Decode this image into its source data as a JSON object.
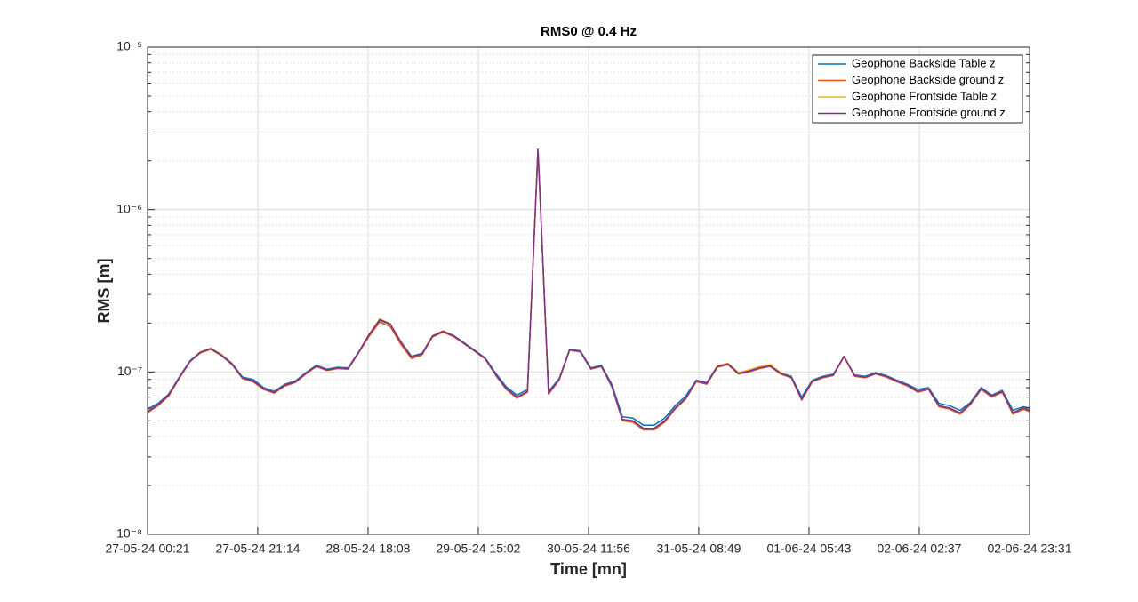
{
  "chart_data": {
    "type": "line",
    "title": "RMS0 @ 0.4 Hz",
    "x_label": "Time [mn]",
    "y_label": "RMS [m]",
    "yscale": "log",
    "grid": true,
    "minor_grid": true,
    "legend_position": "top-right",
    "xlim": [
      "27-05-24 00:21",
      "02-06-24 23:31"
    ],
    "xticks": [
      "27-05-24 00:21",
      "27-05-24 21:14",
      "28-05-24 18:08",
      "29-05-24 15:02",
      "30-05-24 11:56",
      "31-05-24 08:49",
      "01-06-24 05:43",
      "02-06-24 02:37",
      "02-06-24 23:31"
    ],
    "ylim": [
      1e-08,
      1e-05
    ],
    "yticks": [
      {
        "value": 1e-08,
        "label": "10⁻⁸"
      },
      {
        "value": 1e-07,
        "label": "10⁻⁷"
      },
      {
        "value": 1e-06,
        "label": "10⁻⁶"
      },
      {
        "value": 1e-05,
        "label": "10⁻⁵"
      }
    ],
    "x": [
      "27-05-24 00:21",
      "27-05-24 02:21",
      "27-05-24 04:21",
      "27-05-24 06:21",
      "27-05-24 08:21",
      "27-05-24 10:21",
      "27-05-24 12:21",
      "27-05-24 14:21",
      "27-05-24 16:21",
      "27-05-24 18:21",
      "27-05-24 20:21",
      "27-05-24 22:21",
      "28-05-24 00:21",
      "28-05-24 02:21",
      "28-05-24 04:21",
      "28-05-24 06:21",
      "28-05-24 08:21",
      "28-05-24 10:21",
      "28-05-24 12:21",
      "28-05-24 14:21",
      "28-05-24 16:21",
      "28-05-24 18:21",
      "28-05-24 20:21",
      "28-05-24 22:21",
      "29-05-24 00:21",
      "29-05-24 02:21",
      "29-05-24 04:21",
      "29-05-24 06:21",
      "29-05-24 08:21",
      "29-05-24 10:21",
      "29-05-24 12:21",
      "29-05-24 14:21",
      "29-05-24 16:21",
      "29-05-24 18:21",
      "29-05-24 20:21",
      "29-05-24 22:21",
      "30-05-24 00:21",
      "30-05-24 02:21",
      "30-05-24 04:21",
      "30-05-24 06:21",
      "30-05-24 08:21",
      "30-05-24 10:21",
      "30-05-24 12:21",
      "30-05-24 14:21",
      "30-05-24 16:21",
      "30-05-24 18:21",
      "30-05-24 20:21",
      "30-05-24 22:21",
      "31-05-24 00:21",
      "31-05-24 02:21",
      "31-05-24 04:21",
      "31-05-24 06:21",
      "31-05-24 08:21",
      "31-05-24 10:21",
      "31-05-24 12:21",
      "31-05-24 14:21",
      "31-05-24 16:21",
      "31-05-24 18:21",
      "31-05-24 20:21",
      "31-05-24 22:21",
      "01-06-24 00:21",
      "01-06-24 02:21",
      "01-06-24 04:21",
      "01-06-24 06:21",
      "01-06-24 08:21",
      "01-06-24 10:21",
      "01-06-24 12:21",
      "01-06-24 14:21",
      "01-06-24 16:21",
      "01-06-24 18:21",
      "01-06-24 20:21",
      "01-06-24 22:21",
      "02-06-24 00:21",
      "02-06-24 02:21",
      "02-06-24 04:21",
      "02-06-24 06:21",
      "02-06-24 08:21",
      "02-06-24 10:21",
      "02-06-24 12:21",
      "02-06-24 14:21",
      "02-06-24 16:21",
      "02-06-24 18:21",
      "02-06-24 20:21",
      "02-06-24 22:21",
      "02-06-24 23:31"
    ],
    "series": [
      {
        "name": "Geophone Backside Table z",
        "color": "#0072BD",
        "values": [
          5.9e-08,
          6.4e-08,
          7.3e-08,
          9.3e-08,
          1.17e-07,
          1.33e-07,
          1.4e-07,
          1.28e-07,
          1.13e-07,
          9.3e-08,
          9e-08,
          8e-08,
          7.6e-08,
          8.4e-08,
          8.8e-08,
          9.9e-08,
          1.1e-07,
          1.04e-07,
          1.07e-07,
          1.06e-07,
          1.33e-07,
          1.71e-07,
          2.08e-07,
          1.96e-07,
          1.54e-07,
          1.25e-07,
          1.3e-07,
          1.67e-07,
          1.79e-07,
          1.68e-07,
          1.51e-07,
          1.36e-07,
          1.22e-07,
          9.8e-08,
          8.1e-08,
          7.2e-08,
          7.8e-08,
          2.35e-06,
          7.6e-08,
          9.1e-08,
          1.38e-07,
          1.35e-07,
          1.06e-07,
          1.1e-07,
          8.4e-08,
          5.3e-08,
          5.2e-08,
          4.7e-08,
          4.7e-08,
          5.2e-08,
          6.2e-08,
          7.1e-08,
          8.9e-08,
          8.6e-08,
          1.09e-07,
          1.13e-07,
          9.9e-08,
          1.02e-07,
          1.07e-07,
          1.1e-07,
          9.9e-08,
          9.4e-08,
          7e-08,
          8.9e-08,
          9.4e-08,
          9.7e-08,
          1.24e-07,
          9.6e-08,
          9.4e-08,
          9.9e-08,
          9.5e-08,
          8.9e-08,
          8.4e-08,
          7.8e-08,
          8e-08,
          6.4e-08,
          6.2e-08,
          5.8e-08,
          6.5e-08,
          8e-08,
          7.2e-08,
          7.7e-08,
          5.8e-08,
          6.1e-08,
          6e-08
        ]
      },
      {
        "name": "Geophone Backside ground z",
        "color": "#D95319",
        "values": [
          5.6e-08,
          6.2e-08,
          7.1e-08,
          9.1e-08,
          1.15e-07,
          1.31e-07,
          1.38e-07,
          1.26e-07,
          1.11e-07,
          9.1e-08,
          8.7e-08,
          7.8e-08,
          7.4e-08,
          8.2e-08,
          8.6e-08,
          9.7e-08,
          1.08e-07,
          1.02e-07,
          1.05e-07,
          1.04e-07,
          1.31e-07,
          1.66e-07,
          2.03e-07,
          1.9e-07,
          1.48e-07,
          1.21e-07,
          1.27e-07,
          1.64e-07,
          1.76e-07,
          1.65e-07,
          1.49e-07,
          1.34e-07,
          1.2e-07,
          9.5e-08,
          7.8e-08,
          6.9e-08,
          7.5e-08,
          2.34e-06,
          7.3e-08,
          8.9e-08,
          1.36e-07,
          1.33e-07,
          1.04e-07,
          1.08e-07,
          8.1e-08,
          5e-08,
          4.9e-08,
          4.4e-08,
          4.4e-08,
          4.9e-08,
          5.9e-08,
          6.8e-08,
          8.7e-08,
          8.4e-08,
          1.07e-07,
          1.11e-07,
          9.7e-08,
          1e-07,
          1.05e-07,
          1.08e-07,
          9.7e-08,
          9.2e-08,
          6.7e-08,
          8.7e-08,
          9.2e-08,
          9.5e-08,
          1.24e-07,
          9.4e-08,
          9.2e-08,
          9.7e-08,
          9.3e-08,
          8.7e-08,
          8.2e-08,
          7.5e-08,
          7.8e-08,
          6.1e-08,
          5.9e-08,
          5.5e-08,
          6.3e-08,
          7.8e-08,
          7e-08,
          7.5e-08,
          5.5e-08,
          5.9e-08,
          5.7e-08
        ]
      },
      {
        "name": "Geophone Frontside Table z",
        "color": "#EDB120",
        "values": [
          5.7e-08,
          6.3e-08,
          7.2e-08,
          9.2e-08,
          1.16e-07,
          1.33e-07,
          1.4e-07,
          1.28e-07,
          1.12e-07,
          9.2e-08,
          8.8e-08,
          7.9e-08,
          7.5e-08,
          8.3e-08,
          8.7e-08,
          9.8e-08,
          1.09e-07,
          1.03e-07,
          1.06e-07,
          1.05e-07,
          1.32e-07,
          1.71e-07,
          2.12e-07,
          1.98e-07,
          1.53e-07,
          1.24e-07,
          1.29e-07,
          1.66e-07,
          1.79e-07,
          1.67e-07,
          1.5e-07,
          1.35e-07,
          1.21e-07,
          9.6e-08,
          7.9e-08,
          7e-08,
          7.6e-08,
          2.35e-06,
          7.4e-08,
          9e-08,
          1.37e-07,
          1.34e-07,
          1.05e-07,
          1.09e-07,
          8.2e-08,
          5.1e-08,
          5e-08,
          4.5e-08,
          4.5e-08,
          5e-08,
          6e-08,
          6.9e-08,
          8.8e-08,
          8.5e-08,
          1.09e-07,
          1.13e-07,
          9.9e-08,
          1.03e-07,
          1.08e-07,
          1.11e-07,
          9.9e-08,
          9.3e-08,
          6.8e-08,
          8.8e-08,
          9.3e-08,
          9.6e-08,
          1.25e-07,
          9.5e-08,
          9.3e-08,
          9.8e-08,
          9.4e-08,
          8.8e-08,
          8.3e-08,
          7.6e-08,
          7.9e-08,
          6.2e-08,
          6e-08,
          5.6e-08,
          6.4e-08,
          7.9e-08,
          7.1e-08,
          7.6e-08,
          5.6e-08,
          6e-08,
          5.8e-08
        ]
      },
      {
        "name": "Geophone Frontside ground z",
        "color": "#7E2F8E",
        "values": [
          5.7e-08,
          6.3e-08,
          7.2e-08,
          9.2e-08,
          1.16e-07,
          1.32e-07,
          1.39e-07,
          1.27e-07,
          1.12e-07,
          9.2e-08,
          8.8e-08,
          7.9e-08,
          7.5e-08,
          8.3e-08,
          8.7e-08,
          9.8e-08,
          1.09e-07,
          1.03e-07,
          1.06e-07,
          1.05e-07,
          1.32e-07,
          1.7e-07,
          2.1e-07,
          1.97e-07,
          1.53e-07,
          1.24e-07,
          1.29e-07,
          1.66e-07,
          1.78e-07,
          1.67e-07,
          1.5e-07,
          1.35e-07,
          1.21e-07,
          9.6e-08,
          7.9e-08,
          7e-08,
          7.6e-08,
          2.35e-06,
          7.4e-08,
          9e-08,
          1.37e-07,
          1.34e-07,
          1.05e-07,
          1.09e-07,
          8.2e-08,
          5.1e-08,
          5e-08,
          4.5e-08,
          4.5e-08,
          5e-08,
          6e-08,
          6.9e-08,
          8.8e-08,
          8.5e-08,
          1.08e-07,
          1.12e-07,
          9.8e-08,
          1.01e-07,
          1.06e-07,
          1.09e-07,
          9.8e-08,
          9.3e-08,
          6.8e-08,
          8.8e-08,
          9.3e-08,
          9.6e-08,
          1.25e-07,
          9.5e-08,
          9.3e-08,
          9.8e-08,
          9.4e-08,
          8.8e-08,
          8.3e-08,
          7.6e-08,
          7.9e-08,
          6.2e-08,
          6e-08,
          5.6e-08,
          6.4e-08,
          7.9e-08,
          7.1e-08,
          7.6e-08,
          5.6e-08,
          6e-08,
          5.8e-08
        ]
      }
    ]
  }
}
